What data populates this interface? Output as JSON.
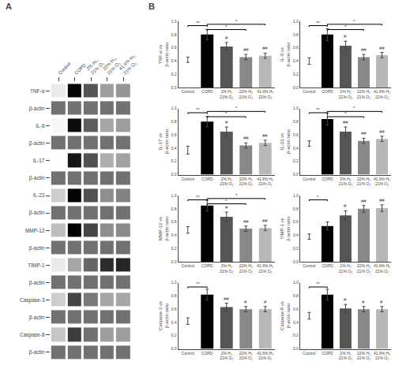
{
  "chart_data": [
    {
      "type": "heatmap",
      "title": "A",
      "grid": false,
      "x": [
        "Control",
        "COPD",
        "2% H₂,\n21% O₂",
        "22% H₂,\n21% O₂",
        "41.6% H₂,\n21% O₂"
      ],
      "y": [
        "TNF-α",
        "β-actin",
        "IL-6",
        "β-actin",
        "IL-17",
        "β-actin",
        "IL-23",
        "β-actin",
        "MMP-12",
        "β-actin",
        "TIMP-1",
        "β-actin",
        "Caspase-3",
        "β-actin",
        "Caspase-8",
        "β-actin"
      ],
      "values": [
        [
          0.25,
          0.82,
          0.62,
          0.44,
          0.46
        ],
        [
          0.55,
          0.55,
          0.55,
          0.55,
          0.55
        ],
        [
          0.22,
          0.8,
          0.6,
          0.42,
          0.44
        ],
        [
          0.55,
          0.55,
          0.55,
          0.55,
          0.55
        ],
        [
          0.2,
          0.78,
          0.63,
          0.4,
          0.43
        ],
        [
          0.55,
          0.55,
          0.55,
          0.55,
          0.55
        ],
        [
          0.32,
          0.82,
          0.63,
          0.48,
          0.51
        ],
        [
          0.55,
          0.55,
          0.55,
          0.55,
          0.55
        ],
        [
          0.36,
          0.83,
          0.66,
          0.48,
          0.49
        ],
        [
          0.55,
          0.55,
          0.55,
          0.55,
          0.55
        ],
        [
          0.25,
          0.42,
          0.58,
          0.72,
          0.74
        ],
        [
          0.55,
          0.55,
          0.55,
          0.55,
          0.55
        ],
        [
          0.32,
          0.66,
          0.53,
          0.42,
          0.42
        ],
        [
          0.55,
          0.55,
          0.55,
          0.55,
          0.55
        ],
        [
          0.34,
          0.68,
          0.55,
          0.44,
          0.44
        ],
        [
          0.55,
          0.55,
          0.55,
          0.55,
          0.55
        ]
      ]
    },
    {
      "type": "bar",
      "title": "B",
      "ylabel": "TNF-α vs\nβ-actin ratio",
      "grid": false,
      "categories": [
        "Control",
        "COPD",
        "2% H₂\n21% O₂",
        "22% H₂\n21% O₂",
        "41.6% H₂\n21% O₂"
      ],
      "values": [
        0.42,
        0.8,
        0.62,
        0.46,
        0.48
      ],
      "errors": [
        0.04,
        0.08,
        0.06,
        0.04,
        0.04
      ],
      "colors": [
        "white",
        "black",
        "#555555",
        "#888888",
        "#b8b8b8"
      ],
      "ylim": [
        0,
        1
      ],
      "yticks": [
        {
          "value": 0,
          "label": "0.0"
        },
        0.2,
        0.4,
        0.6,
        0.8,
        {
          "value": 1,
          "label": "1.0"
        }
      ],
      "annotations": [
        null,
        null,
        "#",
        "##",
        "##"
      ],
      "brackets": [
        {
          "x1": 0,
          "x2": 1,
          "y": 0.935,
          "label": "**"
        },
        {
          "x1": 1,
          "x2": 3,
          "y": 0.875,
          "label": "*"
        },
        {
          "x1": 1,
          "x2": 4,
          "y": 0.955,
          "label": "*"
        }
      ]
    },
    {
      "type": "bar",
      "ylabel": "IL-6 vs\nβ-actin ratio",
      "grid": false,
      "categories": [
        "Control",
        "COPD",
        "2% H₂\n21% O₂",
        "22% H₂\n21% O₂",
        "41.6% H₂\n21% O₂"
      ],
      "values": [
        0.4,
        0.8,
        0.63,
        0.46,
        0.49
      ],
      "errors": [
        0.05,
        0.09,
        0.07,
        0.04,
        0.04
      ],
      "colors": [
        "white",
        "black",
        "#555555",
        "#888888",
        "#b8b8b8"
      ],
      "ylim": [
        0,
        1
      ],
      "yticks": [
        {
          "value": 0,
          "label": "0.0"
        },
        0.2,
        0.4,
        0.6,
        0.8,
        {
          "value": 1,
          "label": "1.0"
        }
      ],
      "annotations": [
        null,
        null,
        "#",
        "##",
        "##"
      ],
      "brackets": [
        {
          "x1": 0,
          "x2": 1,
          "y": 0.935,
          "label": "**"
        },
        {
          "x1": 1,
          "x2": 3,
          "y": 0.875,
          "label": "*"
        },
        {
          "x1": 1,
          "x2": 4,
          "y": 0.955,
          "label": "*"
        }
      ]
    },
    {
      "type": "bar",
      "ylabel": "IL-17 vs\nβ-actin ratio",
      "grid": false,
      "categories": [
        "Control",
        "COPD",
        "2% H₂\n21% O₂",
        "22% H₂\n21% O₂",
        "41.6% H₂\n21% O₂"
      ],
      "values": [
        0.37,
        0.8,
        0.65,
        0.44,
        0.48
      ],
      "errors": [
        0.06,
        0.08,
        0.07,
        0.04,
        0.04
      ],
      "colors": [
        "white",
        "black",
        "#555555",
        "#888888",
        "#b8b8b8"
      ],
      "ylim": [
        0,
        1
      ],
      "yticks": [
        {
          "value": 0,
          "label": "0.0"
        },
        0.2,
        0.4,
        0.6,
        0.8,
        {
          "value": 1,
          "label": "1.0"
        }
      ],
      "annotations": [
        null,
        null,
        "#",
        "##",
        "##"
      ],
      "brackets": [
        {
          "x1": 0,
          "x2": 1,
          "y": 0.935,
          "label": "**"
        },
        {
          "x1": 1,
          "x2": 3,
          "y": 0.875,
          "label": "*"
        },
        {
          "x1": 1,
          "x2": 4,
          "y": 0.955,
          "label": "*"
        }
      ]
    },
    {
      "type": "bar",
      "ylabel": "IL-23 vs\nβ-actin ratio",
      "grid": false,
      "categories": [
        "Control",
        "COPD",
        "2% H₂\n21% O₂",
        "22% H₂\n21% O₂",
        "41.6% H₂\n21% O₂"
      ],
      "values": [
        0.47,
        0.84,
        0.65,
        0.51,
        0.54
      ],
      "errors": [
        0.04,
        0.09,
        0.07,
        0.04,
        0.04
      ],
      "colors": [
        "white",
        "black",
        "#555555",
        "#888888",
        "#b8b8b8"
      ],
      "ylim": [
        0,
        1
      ],
      "yticks": [
        {
          "value": 0,
          "label": "0.0"
        },
        0.2,
        0.4,
        0.6,
        0.8,
        {
          "value": 1,
          "label": "1.0"
        }
      ],
      "annotations": [
        null,
        null,
        "##",
        "##",
        "##"
      ],
      "brackets": [
        {
          "x1": 0,
          "x2": 1,
          "y": 0.935,
          "label": "**"
        },
        {
          "x1": 1,
          "x2": 3,
          "y": 0.875,
          "label": "*"
        },
        {
          "x1": 1,
          "x2": 4,
          "y": 0.955,
          "label": "*"
        }
      ]
    },
    {
      "type": "bar",
      "ylabel": "MMP-12 vs\nβ-actin ratio",
      "grid": false,
      "categories": [
        "Control",
        "COPD",
        "2% H₂\n21% O₂",
        "22% H₂\n21% O₂",
        "41.6% H₂\n21% O₂"
      ],
      "values": [
        0.48,
        0.85,
        0.68,
        0.5,
        0.51
      ],
      "errors": [
        0.05,
        0.08,
        0.07,
        0.04,
        0.04
      ],
      "colors": [
        "white",
        "black",
        "#555555",
        "#888888",
        "#b8b8b8"
      ],
      "ylim": [
        0,
        1
      ],
      "yticks": [
        {
          "value": 0,
          "label": "0.0"
        },
        0.2,
        0.4,
        0.6,
        0.8,
        {
          "value": 1,
          "label": "1.0"
        }
      ],
      "annotations": [
        null,
        null,
        "#",
        "##",
        "##"
      ],
      "brackets": [
        {
          "x1": 0,
          "x2": 1,
          "y": 0.935,
          "label": "**"
        },
        {
          "x1": 1,
          "x2": 3,
          "y": 0.875,
          "label": "*"
        },
        {
          "x1": 1,
          "x2": 4,
          "y": 0.955,
          "label": "*"
        }
      ]
    },
    {
      "type": "bar",
      "ylabel": "TIMP-1 vs\nβ-actin ratio",
      "grid": false,
      "categories": [
        "Control",
        "COPD",
        "2% H₂\n21% O₂",
        "22% H₂\n21% O₂",
        "41.6% H₂\n21% O₂"
      ],
      "values": [
        0.38,
        0.54,
        0.7,
        0.8,
        0.81
      ],
      "errors": [
        0.04,
        0.06,
        0.07,
        0.05,
        0.05
      ],
      "colors": [
        "white",
        "black",
        "#555555",
        "#888888",
        "#b8b8b8"
      ],
      "ylim": [
        0,
        1
      ],
      "yticks": [
        {
          "value": 0,
          "label": "0.0"
        },
        0.2,
        0.4,
        0.6,
        0.8,
        {
          "value": 1,
          "label": "1.0"
        }
      ],
      "annotations": [
        null,
        null,
        "#",
        "##",
        "##"
      ],
      "brackets": [
        {
          "x1": 0,
          "x2": 1,
          "y": 0.935,
          "label": "*"
        }
      ]
    },
    {
      "type": "bar",
      "ylabel": "Caspase-3 vs\nβ-actin ratio",
      "grid": false,
      "categories": [
        "Control",
        "COPD",
        "2% H₂\n21% O₂",
        "22% H₂\n21% O₂",
        "41.6% H₂\n21% O₂"
      ],
      "values": [
        0.42,
        0.82,
        0.63,
        0.6,
        0.6
      ],
      "errors": [
        0.05,
        0.08,
        0.06,
        0.04,
        0.04
      ],
      "colors": [
        "white",
        "black",
        "#555555",
        "#888888",
        "#b8b8b8"
      ],
      "ylim": [
        0,
        1
      ],
      "yticks": [
        {
          "value": 0,
          "label": "0.0"
        },
        0.2,
        0.4,
        0.6,
        0.8,
        {
          "value": 1,
          "label": "1.0"
        }
      ],
      "annotations": [
        null,
        null,
        "##",
        "#",
        "#"
      ],
      "brackets": [
        {
          "x1": 0,
          "x2": 1,
          "y": 0.935,
          "label": "**"
        }
      ]
    },
    {
      "type": "bar",
      "ylabel": "Caspase-8 vs\nβ-actin ratio",
      "grid": false,
      "categories": [
        "Control",
        "COPD",
        "2% H₂\n21% O₂",
        "22% H₂\n21% O₂",
        "41.6% H₂\n21% O₂"
      ],
      "values": [
        0.5,
        0.82,
        0.61,
        0.6,
        0.6
      ],
      "errors": [
        0.05,
        0.08,
        0.06,
        0.04,
        0.04
      ],
      "colors": [
        "white",
        "black",
        "#555555",
        "#888888",
        "#b8b8b8"
      ],
      "ylim": [
        0,
        1
      ],
      "yticks": [
        {
          "value": 0,
          "label": "0.0"
        },
        0.2,
        0.4,
        0.6,
        0.8,
        {
          "value": 1,
          "label": "1.0"
        }
      ],
      "annotations": [
        null,
        null,
        "#",
        "#",
        "#"
      ],
      "brackets": [
        {
          "x1": 0,
          "x2": 1,
          "y": 0.935,
          "label": "**"
        }
      ]
    }
  ]
}
